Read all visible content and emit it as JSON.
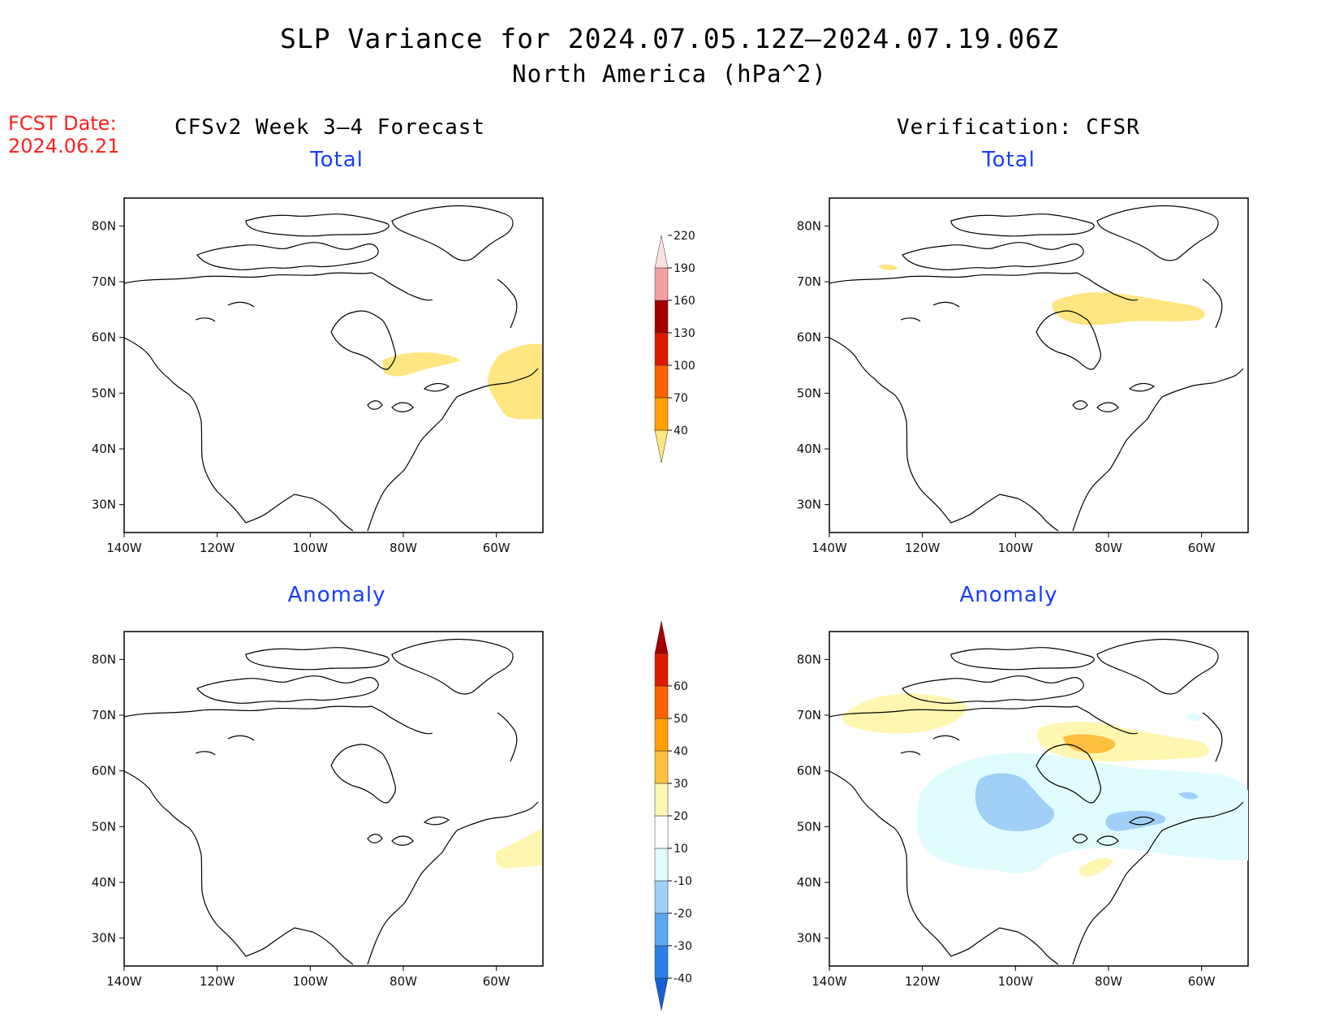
{
  "title": "SLP Variance for 2024.07.05.12Z–2024.07.19.06Z",
  "subtitle": "North America (hPa^2)",
  "fcst_date": {
    "label": "FCST Date:",
    "value": "2024.06.21"
  },
  "columns": {
    "left": "CFSv2 Week 3–4 Forecast",
    "right": "Verification: CFSR"
  },
  "panels": [
    {
      "id": "forecast-total",
      "title": "Total"
    },
    {
      "id": "verification-total",
      "title": "Total"
    },
    {
      "id": "forecast-anomaly",
      "title": "Anomaly"
    },
    {
      "id": "verification-anomaly",
      "title": "Anomaly"
    }
  ],
  "axes": {
    "lat_ticks": [
      "30N",
      "40N",
      "50N",
      "60N",
      "70N",
      "80N"
    ],
    "lon_ticks": [
      "140W",
      "120W",
      "100W",
      "80W",
      "60W"
    ],
    "lat_range": [
      25,
      85
    ],
    "lon_range": [
      -140,
      -50
    ]
  },
  "colorbars": {
    "total": {
      "levels": [
        "40",
        "70",
        "100",
        "130",
        "160",
        "190",
        "220"
      ],
      "colors": [
        "#ffe680",
        "#ffa000",
        "#ff6000",
        "#e11800",
        "#a50000",
        "#f4a0a0",
        "#fbe0e0"
      ]
    },
    "anomaly": {
      "levels": [
        "-40",
        "-30",
        "-20",
        "-10",
        "10",
        "20",
        "30",
        "40",
        "50",
        "60"
      ],
      "colors": [
        "#1560d0",
        "#2a7fe8",
        "#5aa8f0",
        "#a0d0f8",
        "#e0fcff",
        "#ffffff",
        "#fff6b0",
        "#ffc040",
        "#ffa000",
        "#ff6000",
        "#e11800",
        "#a50000"
      ]
    }
  },
  "colors": {
    "title_blue": "#1a3cff",
    "fcst_red": "#ff2020"
  }
}
